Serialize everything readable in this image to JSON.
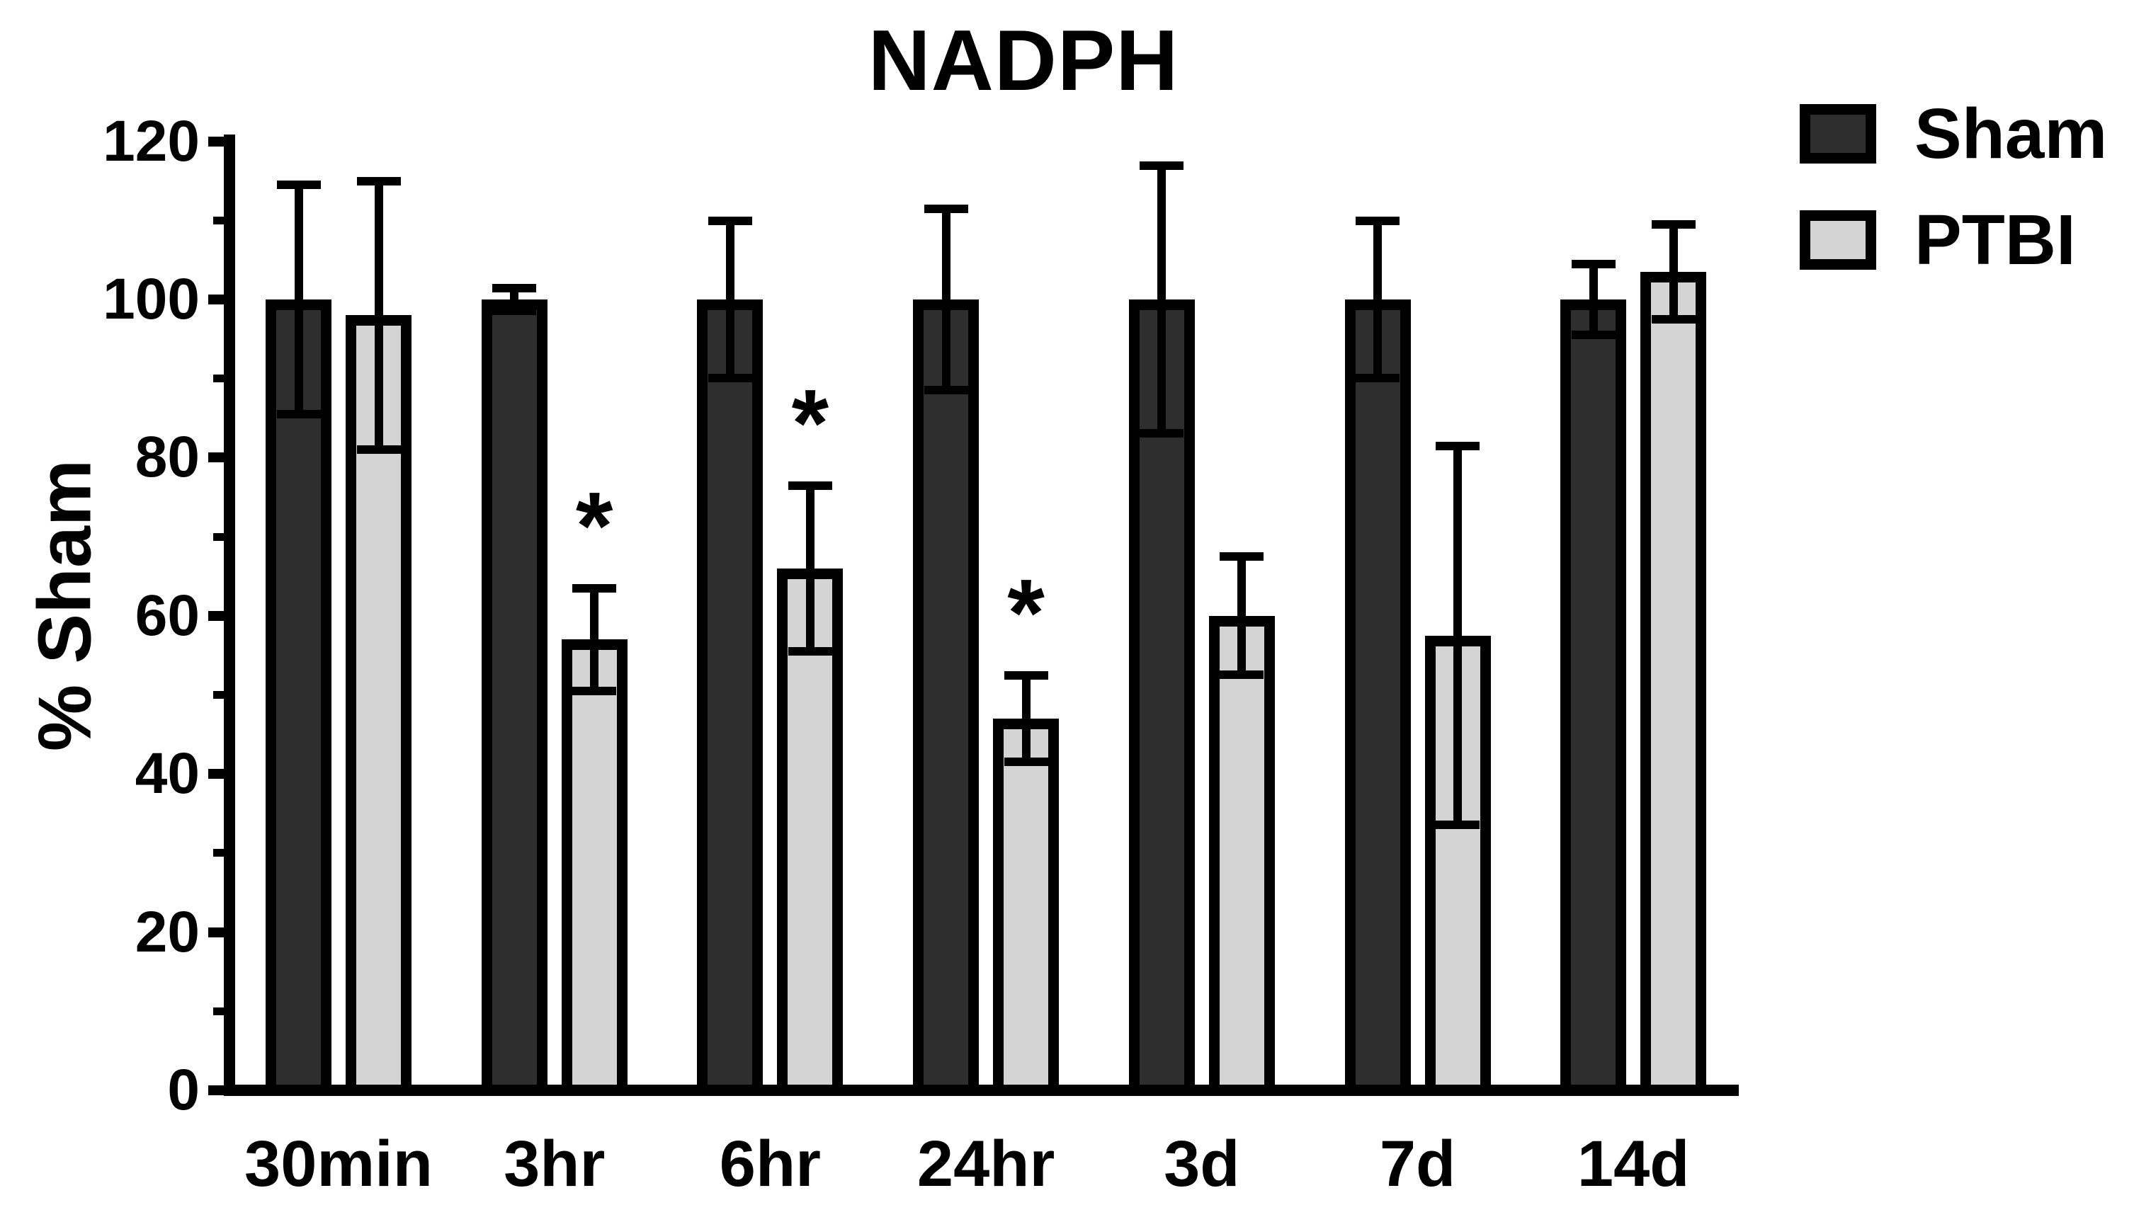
{
  "figure": {
    "title": "NADPH",
    "y_axis_label": "% Sham",
    "background_color": "#ffffff",
    "axis_color": "#000000",
    "text_color": "#000000"
  },
  "legend": {
    "position": "top-right",
    "items": [
      {
        "label": "Sham",
        "swatch_color": "#2e2e2e",
        "border_color": "#000000"
      },
      {
        "label": "PTBI",
        "swatch_color": "#d4d4d4",
        "border_color": "#000000"
      }
    ]
  },
  "chart_data": {
    "type": "bar",
    "title": "NADPH",
    "xlabel": "",
    "ylabel": "% Sham",
    "ylim": [
      0,
      120
    ],
    "y_major_ticks": [
      120,
      100,
      80,
      60,
      40,
      20,
      0
    ],
    "y_minor_ticks": [
      110,
      90,
      70,
      50,
      30,
      10
    ],
    "grid": false,
    "legend_position": "top-right",
    "categories": [
      "30min",
      "3hr",
      "6hr",
      "24hr",
      "3d",
      "7d",
      "14d"
    ],
    "series": [
      {
        "name": "Sham",
        "color": "#2e2e2e",
        "values": [
          100,
          100,
          100,
          100,
          100,
          100,
          100
        ],
        "errors": [
          15,
          2,
          10.5,
          12,
          17.5,
          10.5,
          5
        ],
        "significant": [
          false,
          false,
          false,
          false,
          false,
          false,
          false
        ]
      },
      {
        "name": "PTBI",
        "color": "#d4d4d4",
        "values": [
          98,
          57,
          66,
          47,
          60,
          57.5,
          103.5
        ],
        "errors": [
          17.5,
          7,
          11,
          6,
          8,
          24.5,
          6.5
        ],
        "significant": [
          false,
          true,
          true,
          true,
          false,
          false,
          false
        ]
      }
    ],
    "significance_marker": "*",
    "significance_note": "asterisk shown above PTBI error bar at 3hr, 6hr and 24hr"
  }
}
